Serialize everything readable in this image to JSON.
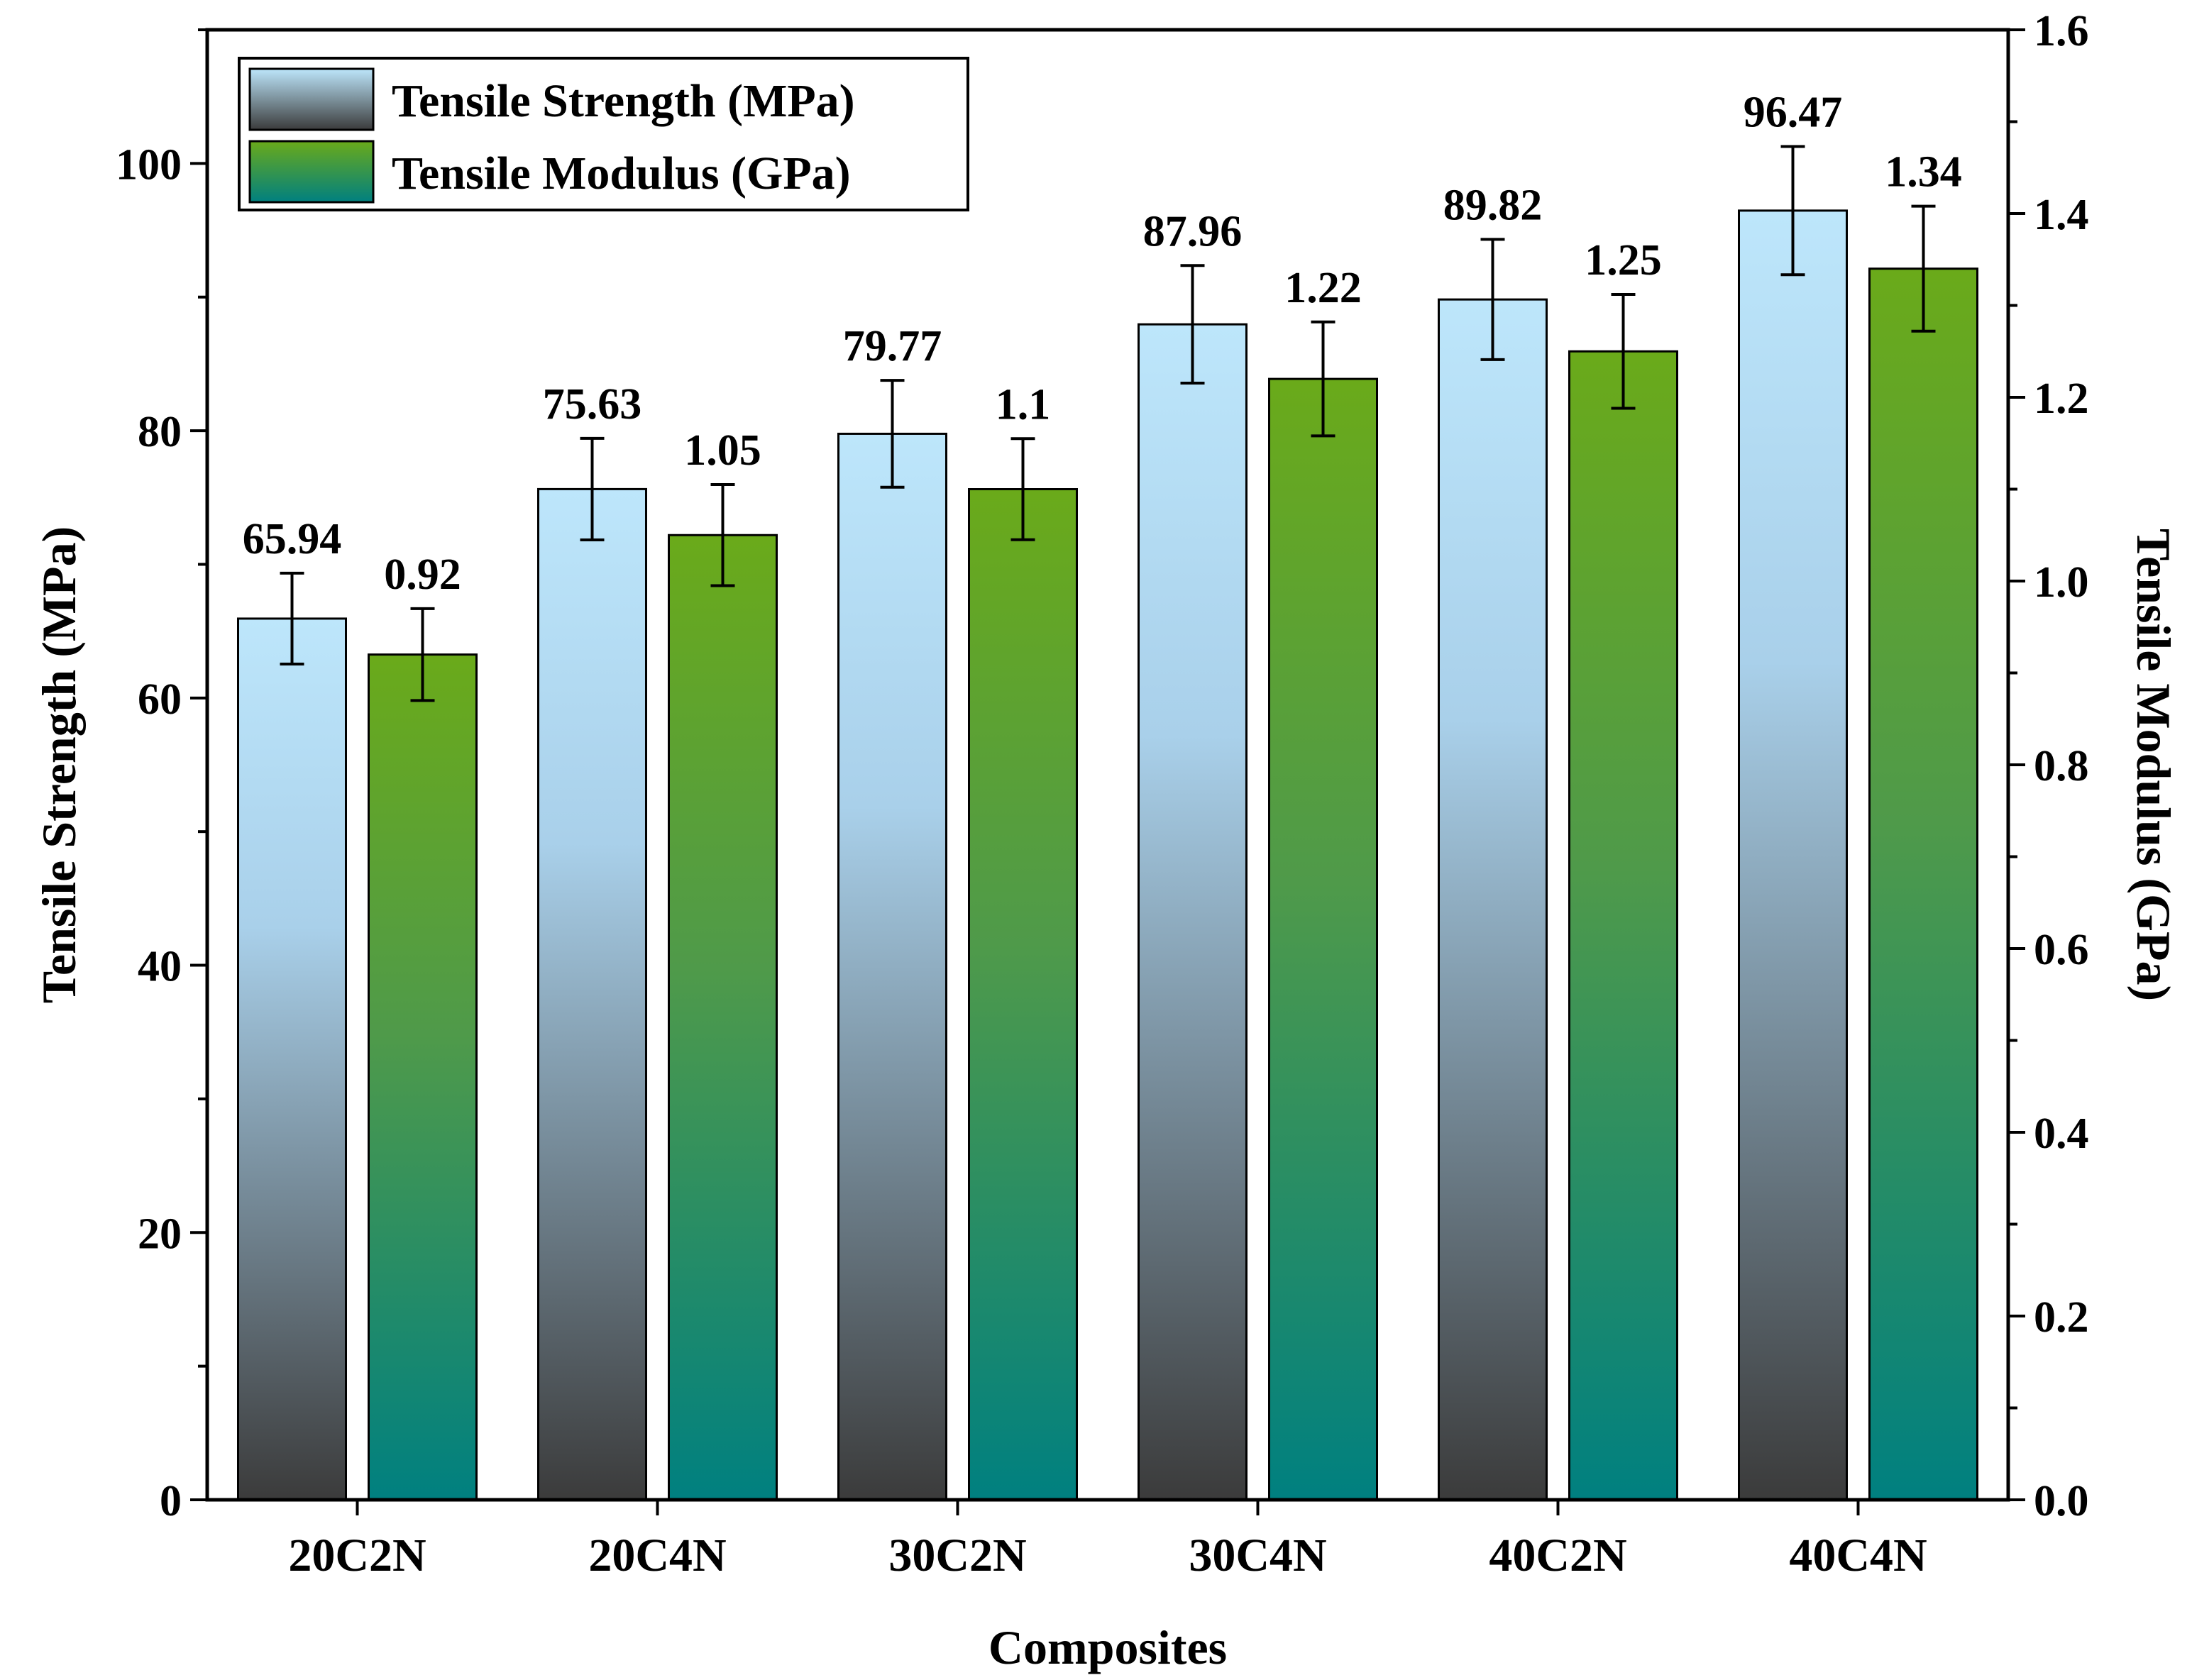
{
  "chart_data": {
    "type": "bar",
    "categories": [
      "20C2N",
      "20C4N",
      "30C2N",
      "30C4N",
      "40C2N",
      "40C4N"
    ],
    "xlabel": "Composites",
    "y_left": {
      "label": "Tensile Strength (MPa)",
      "lim": [
        0,
        110
      ],
      "ticks": [
        0,
        20,
        40,
        60,
        80,
        100
      ],
      "tick_labels": [
        "0",
        "20",
        "40",
        "60",
        "80",
        "100"
      ]
    },
    "y_right": {
      "label": "Tensile Modulus (GPa)",
      "lim": [
        0,
        1.6
      ],
      "ticks": [
        0,
        0.2,
        0.4,
        0.6,
        0.8,
        1.0,
        1.2,
        1.4,
        1.6
      ],
      "tick_labels": [
        "0.0",
        "0.2",
        "0.4",
        "0.6",
        "0.8",
        "1.0",
        "1.2",
        "1.4",
        "1.6"
      ]
    },
    "series": [
      {
        "name": "Tensile Strength (MPa)",
        "axis": "left",
        "values": [
          65.94,
          75.63,
          79.77,
          87.96,
          89.82,
          96.47
        ],
        "labels": [
          "65.94",
          "75.63",
          "79.77",
          "87.96",
          "89.82",
          "96.47"
        ],
        "error": [
          3.4,
          3.8,
          4.0,
          4.4,
          4.5,
          4.8
        ],
        "gradient": [
          "#bde6fb",
          "#3b3b3b"
        ]
      },
      {
        "name": "Tensile Modulus (GPa)",
        "axis": "right",
        "values": [
          0.92,
          1.05,
          1.1,
          1.22,
          1.25,
          1.34
        ],
        "labels": [
          "0.92",
          "1.05",
          "1.1",
          "1.22",
          "1.25",
          "1.34"
        ],
        "error": [
          0.05,
          0.055,
          0.055,
          0.062,
          0.062,
          0.068
        ],
        "gradient": [
          "#6aaa1a",
          "#008080"
        ]
      }
    ],
    "legend": "top-left",
    "grid": false
  }
}
